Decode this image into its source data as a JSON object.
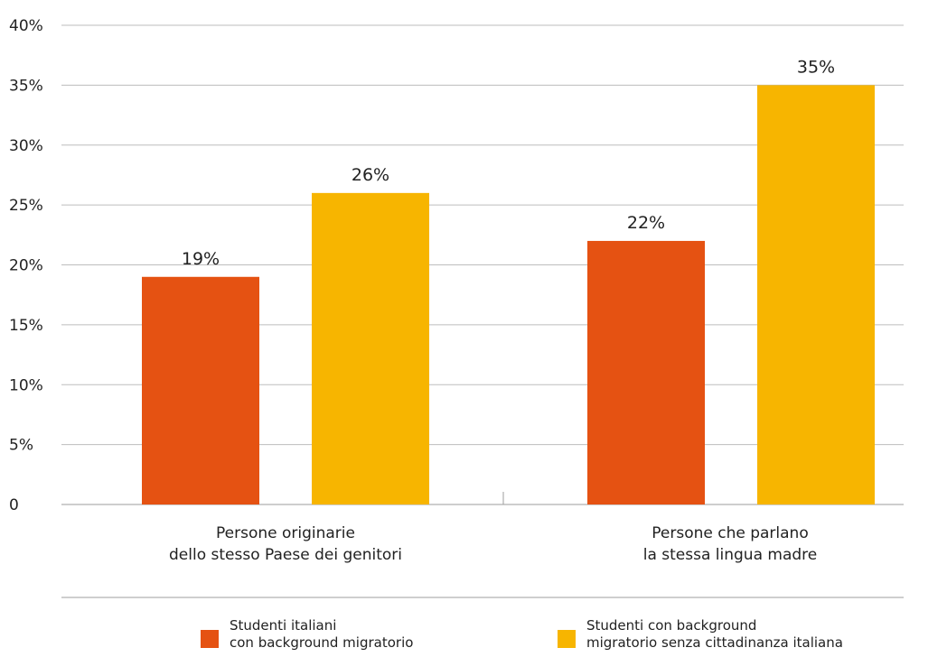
{
  "chart_data": {
    "type": "bar",
    "categories": [
      [
        "Persone originarie",
        "dello stesso Paese dei genitori"
      ],
      [
        "Persone che parlano",
        "la stessa lingua madre"
      ]
    ],
    "series": [
      {
        "name": [
          "Studenti italiani",
          "con background migratorio"
        ],
        "values": [
          19,
          22
        ],
        "labels": [
          "19%",
          "22%"
        ],
        "color": "#e55212"
      },
      {
        "name": [
          "Studenti con background",
          "migratorio senza cittadinanza italiana"
        ],
        "values": [
          26,
          35
        ],
        "labels": [
          "26%",
          "35%"
        ],
        "color": "#f7b500"
      }
    ],
    "y_ticks": [
      0,
      5,
      10,
      15,
      20,
      25,
      30,
      35,
      40
    ],
    "y_tick_labels": [
      "0",
      "5%",
      "10%",
      "15%",
      "20%",
      "25%",
      "30%",
      "35%",
      "40%"
    ],
    "ylim": [
      0,
      40
    ],
    "grid": true,
    "legend_position": "bottom",
    "colors": {
      "grid": "#bdbdbd",
      "axis": "#9e9e9e"
    }
  }
}
